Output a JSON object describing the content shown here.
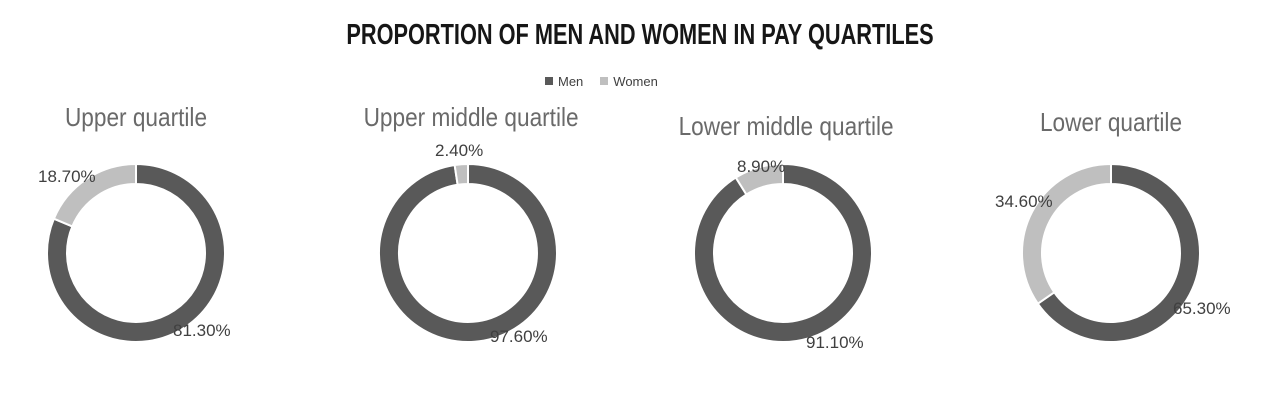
{
  "chart_data": {
    "type": "donut",
    "title": "PROPORTION OF MEN AND WOMEN IN PAY QUARTILES",
    "unit": "%",
    "legend": {
      "position": "top-center",
      "entries": [
        {
          "name": "Men",
          "color": "#595959"
        },
        {
          "name": "Women",
          "color": "#bfbfbf"
        }
      ]
    },
    "colors": {
      "men": "#595959",
      "women": "#bfbfbf",
      "slice_border": "#ffffff"
    },
    "style": {
      "start_angle_deg": 0,
      "direction": "clockwise",
      "donut_hole_ratio": 0.775
    },
    "charts": [
      {
        "label": "Upper quartile",
        "series": {
          "men": 81.3,
          "women": 18.7
        },
        "labels": {
          "men": "81.30%",
          "women": "18.70%"
        }
      },
      {
        "label": "Upper middle quartile",
        "series": {
          "men": 97.6,
          "women": 2.4
        },
        "labels": {
          "men": "97.60%",
          "women": "2.40%"
        }
      },
      {
        "label": "Lower middle quartile",
        "series": {
          "men": 91.1,
          "women": 8.9
        },
        "labels": {
          "men": "91.10%",
          "women": "8.90%"
        }
      },
      {
        "label": "Lower quartile",
        "series": {
          "men": 65.3,
          "women": 34.6
        },
        "labels": {
          "men": "65.30%",
          "women": "34.60%"
        }
      }
    ]
  }
}
